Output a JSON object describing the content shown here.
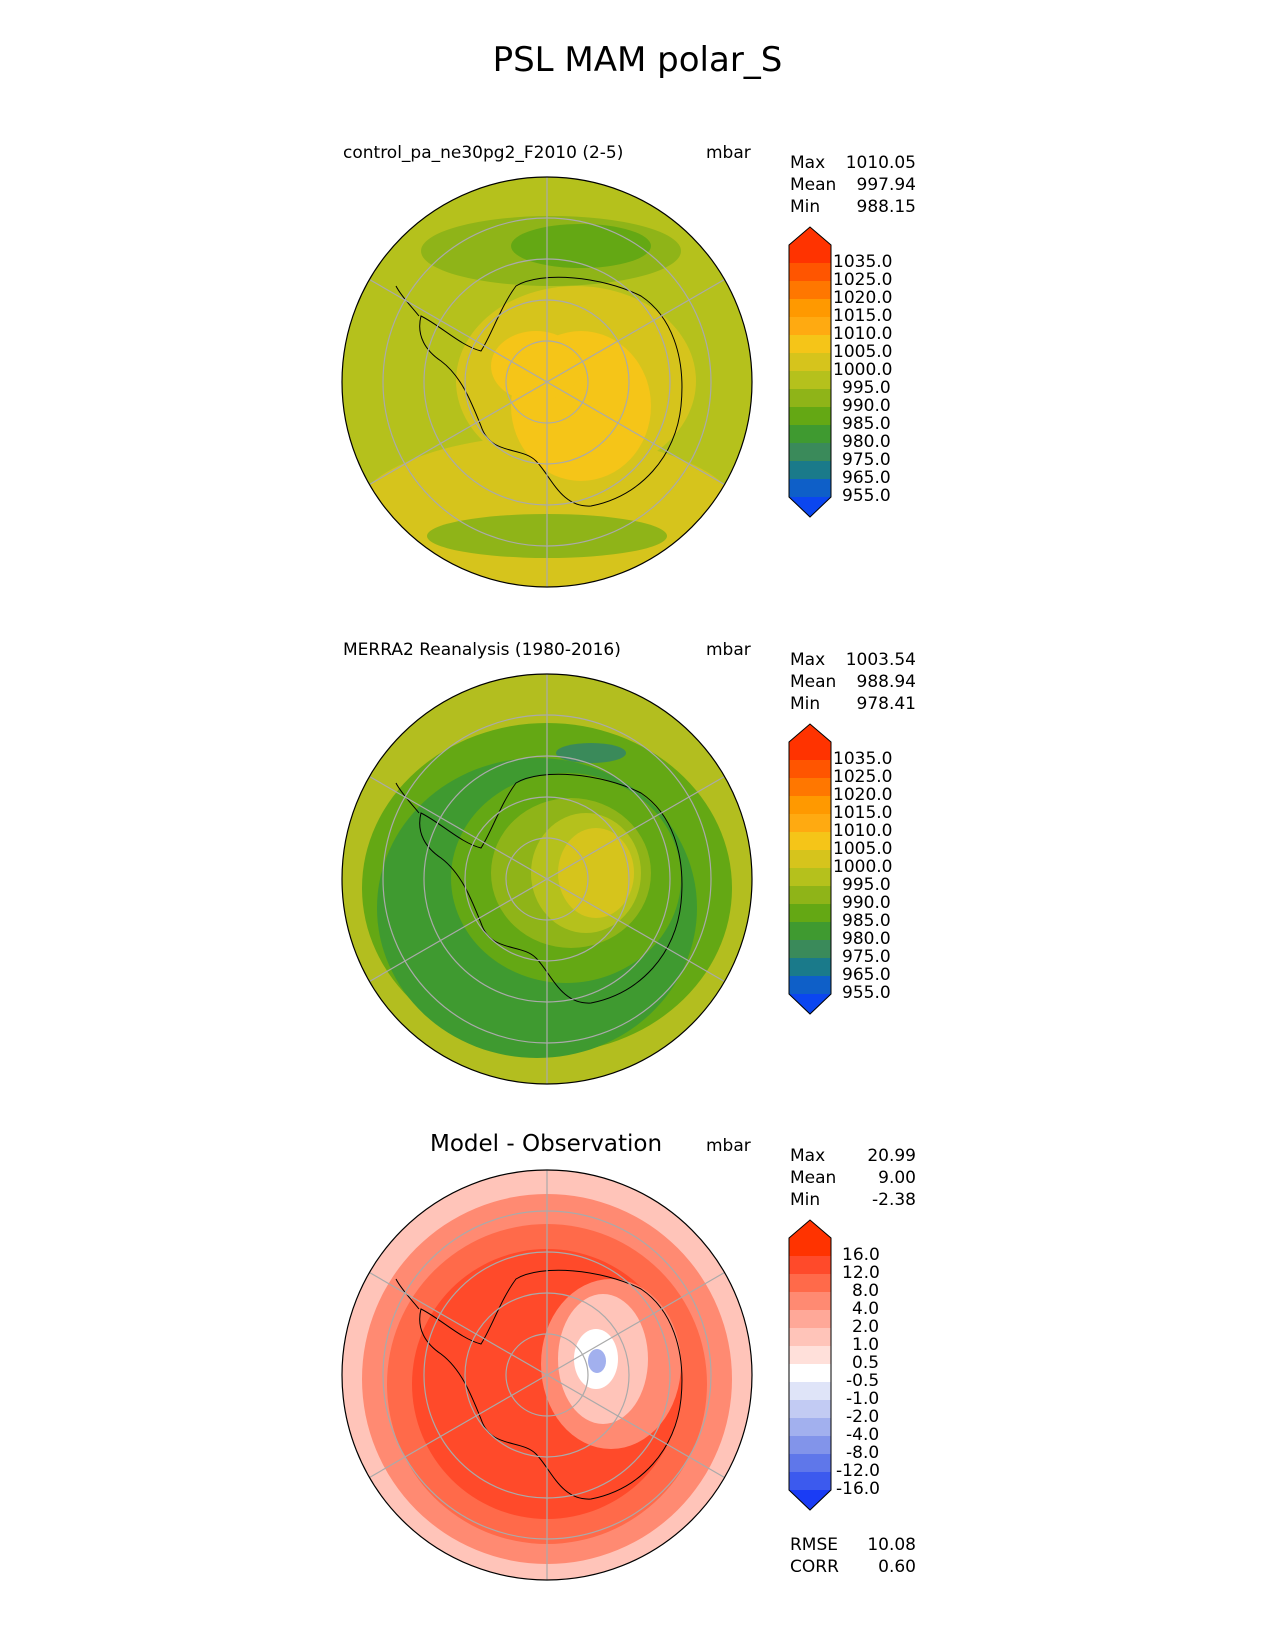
{
  "title": "PSL MAM polar_S",
  "panels": [
    {
      "id": "model",
      "title": "control_pa_ne30pg2_F2010 (2-5)",
      "units": "mbar",
      "stats": {
        "max_label": "Max",
        "max": "1010.05",
        "mean_label": "Mean",
        "mean": "997.94",
        "min_label": "Min",
        "min": "988.15"
      },
      "colorbar": [
        "1035.0",
        "1025.0",
        "1020.0",
        "1015.0",
        "1010.0",
        "1005.0",
        "1000.0",
        "995.0",
        "990.0",
        "985.0",
        "980.0",
        "975.0",
        "965.0",
        "955.0"
      ]
    },
    {
      "id": "obs",
      "title": "MERRA2 Reanalysis (1980-2016)",
      "units": "mbar",
      "stats": {
        "max_label": "Max",
        "max": "1003.54",
        "mean_label": "Mean",
        "mean": "988.94",
        "min_label": "Min",
        "min": "978.41"
      },
      "colorbar": [
        "1035.0",
        "1025.0",
        "1020.0",
        "1015.0",
        "1010.0",
        "1005.0",
        "1000.0",
        "995.0",
        "990.0",
        "985.0",
        "980.0",
        "975.0",
        "965.0",
        "955.0"
      ]
    },
    {
      "id": "diff",
      "title": "Model - Observation",
      "units": "mbar",
      "stats": {
        "max_label": "Max",
        "max": "20.99",
        "mean_label": "Mean",
        "mean": "9.00",
        "min_label": "Min",
        "min": "-2.38"
      },
      "colorbar": [
        "16.0",
        "12.0",
        "8.0",
        "4.0",
        "2.0",
        "1.0",
        "0.5",
        "-0.5",
        "-1.0",
        "-2.0",
        "-4.0",
        "-8.0",
        "-12.0",
        "-16.0"
      ],
      "extra": {
        "rmse_label": "RMSE",
        "rmse": "10.08",
        "corr_label": "CORR",
        "corr": "0.60"
      }
    }
  ],
  "colors": {
    "psl_scale": [
      "#ff3300",
      "#ff5500",
      "#ff7700",
      "#ff9900",
      "#ffaa11",
      "#f5c518",
      "#d6c41c",
      "#b5c11c",
      "#8fb418",
      "#64a814",
      "#3f9a30",
      "#3a8a5a",
      "#1a7a8a",
      "#0e5fc8",
      "#0b46f0"
    ],
    "diff_scale": [
      "#ff3300",
      "#ff4a2a",
      "#ff6a4a",
      "#ff8a72",
      "#ffa898",
      "#ffc4b9",
      "#ffe0da",
      "#ffffff",
      "#dfe4f8",
      "#c2cbf3",
      "#a2b0ee",
      "#8294ea",
      "#5f77ea",
      "#3c5aee",
      "#1a3cf5"
    ],
    "panel_fill": {
      "model": "#b5c11c",
      "obs": "#b3be1f",
      "diff": "#ff8a72"
    }
  }
}
